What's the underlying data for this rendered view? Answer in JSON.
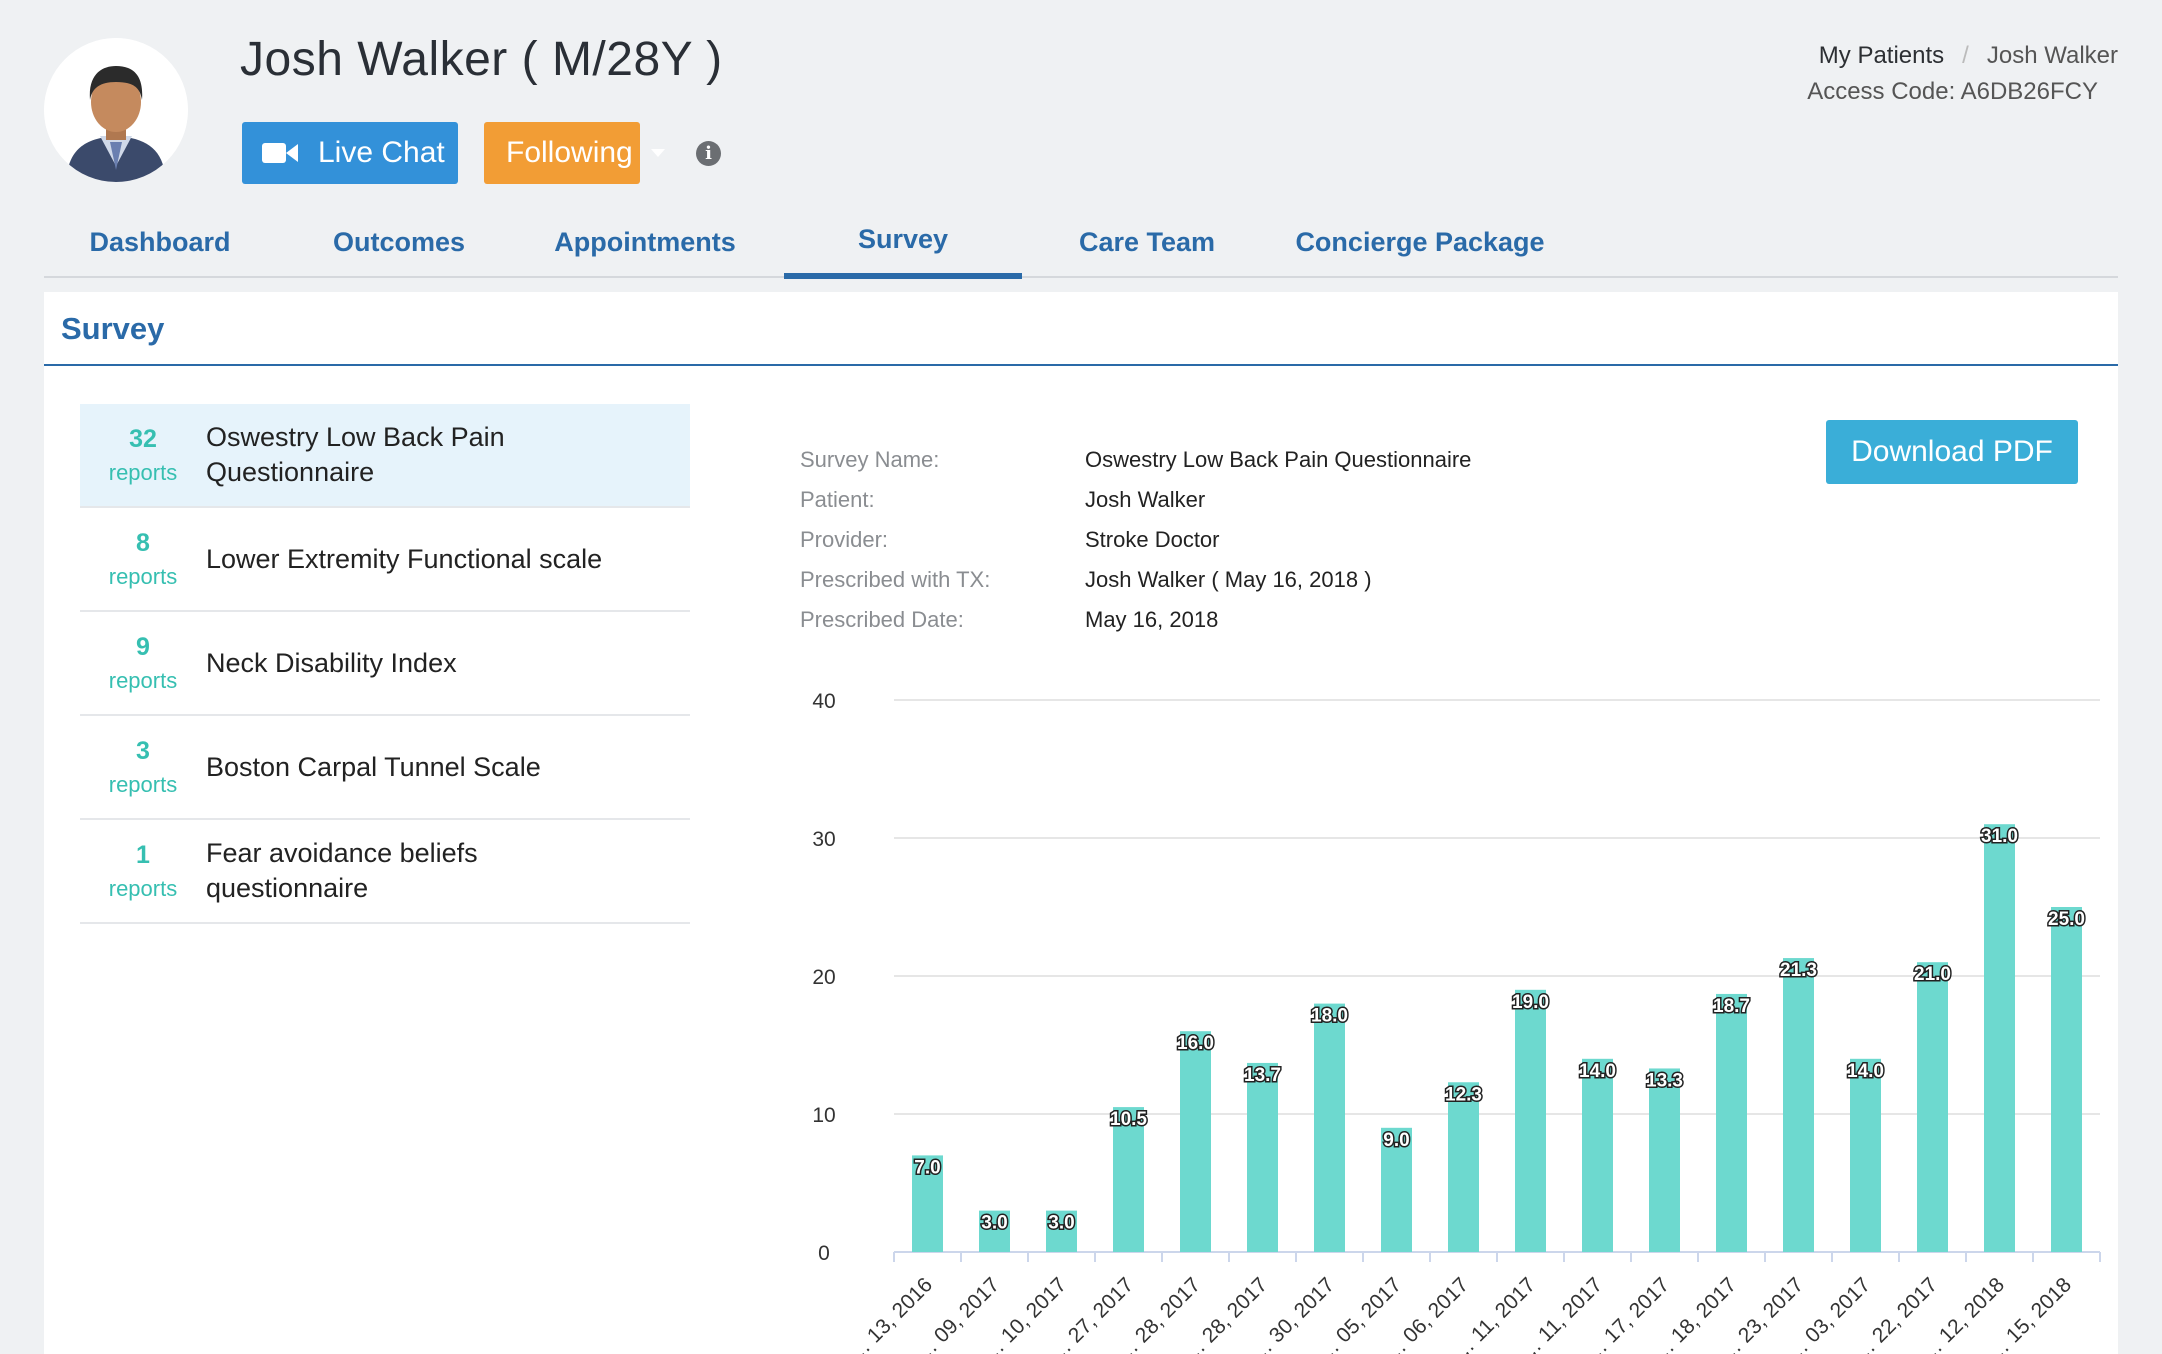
{
  "patient": {
    "title": "Josh Walker ( M/28Y )"
  },
  "header": {
    "live_chat_label": "Live Chat",
    "following_label": "Following",
    "info_glyph": "i"
  },
  "breadcrumb": {
    "parent": "My Patients",
    "separator": "/",
    "current": "Josh Walker",
    "access_code": "Access Code: A6DB26FCY"
  },
  "tabs": [
    {
      "label": "Dashboard"
    },
    {
      "label": "Outcomes"
    },
    {
      "label": "Appointments"
    },
    {
      "label": "Survey"
    },
    {
      "label": "Care Team"
    },
    {
      "label": "Concierge Package"
    }
  ],
  "panel": {
    "title": "Survey"
  },
  "surveys": [
    {
      "count": "32",
      "unit": "reports",
      "name": "Oswestry Low Back Pain Questionnaire"
    },
    {
      "count": "8",
      "unit": "reports",
      "name": "Lower Extremity Functional scale"
    },
    {
      "count": "9",
      "unit": "reports",
      "name": "Neck Disability Index"
    },
    {
      "count": "3",
      "unit": "reports",
      "name": "Boston Carpal Tunnel Scale"
    },
    {
      "count": "1",
      "unit": "reports",
      "name": "Fear avoidance beliefs questionnaire"
    }
  ],
  "details": {
    "survey_name_label": "Survey Name:",
    "survey_name": "Oswestry Low Back Pain Questionnaire",
    "patient_label": "Patient:",
    "patient": "Josh Walker",
    "provider_label": "Provider:",
    "provider": "Stroke Doctor",
    "prescribed_tx_label": "Prescribed with TX:",
    "prescribed_tx": "Josh Walker ( May 16, 2018 )",
    "prescribed_date_label": "Prescribed Date:",
    "prescribed_date": "May 16, 2018"
  },
  "download_label": "Download PDF",
  "colors": {
    "accent_blue": "#2a6aa8",
    "live_chat": "#3391d9",
    "following": "#f29d35",
    "download": "#3aaed8",
    "bar": "#6dd9cf",
    "count_teal": "#36bfb1"
  },
  "chart_data": {
    "type": "bar",
    "categories": [
      "… 13, 2016",
      "… 09, 2017",
      "… 10, 2017",
      "… 27, 2017",
      "… 28, 2017",
      "… 28, 2017",
      "… 30, 2017",
      "… 05, 2017",
      "… 06, 2017",
      "… 11, 2017",
      "… 11, 2017",
      "… 17, 2017",
      "… 18, 2017",
      "… 23, 2017",
      "… 03, 2017",
      "… 22, 2017",
      "… 12, 2018",
      "… 15, 2018"
    ],
    "values": [
      7.0,
      3.0,
      3.0,
      10.5,
      16.0,
      13.7,
      18.0,
      9.0,
      12.3,
      19.0,
      14.0,
      13.3,
      18.7,
      21.3,
      14.0,
      21.0,
      31.0,
      25.0
    ],
    "value_labels": [
      "7.0",
      "3.0",
      "3.0",
      "10.5",
      "16.0",
      "13.7",
      "18.0",
      "9.0",
      "12.3",
      "19.0",
      "14.0",
      "13.3",
      "18.7",
      "21.3",
      "14.0",
      "21.0",
      "31.0",
      "25.0"
    ],
    "yticks": [
      "0",
      "10",
      "20",
      "30",
      "40"
    ],
    "ylim": [
      0,
      40
    ],
    "grid": true
  }
}
